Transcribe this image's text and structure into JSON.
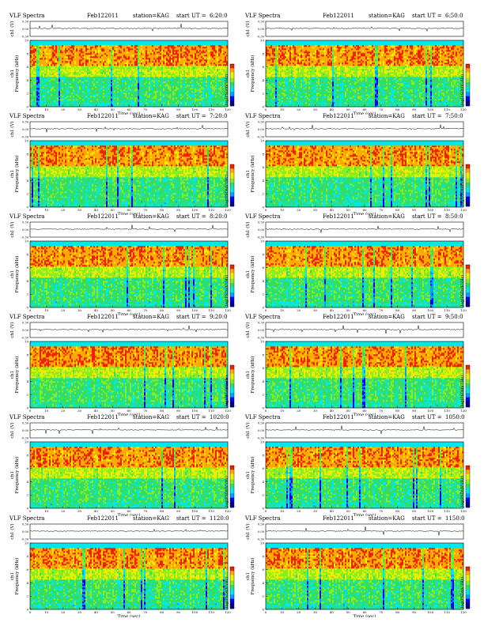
{
  "header": {
    "title_left": "VLF Spectra",
    "station": "station=KAG",
    "start_prefix": "start UT ="
  },
  "axis": {
    "waveform_label": "ch1 (V)",
    "waveform_ticks": [
      "0.30",
      "0.00",
      "-0.30"
    ],
    "freq_label": "Frequency (kHz)",
    "ch_label": "ch1",
    "freq_ticks": [
      "0",
      "2",
      "4",
      "6",
      "8",
      "10"
    ],
    "time_label": "Time (sec)",
    "time_ticks": [
      "0",
      "10",
      "20",
      "30",
      "40",
      "50",
      "60",
      "70",
      "80",
      "90",
      "100",
      "110",
      "120"
    ],
    "colorbar_label": "log(PSD)(V²/Hz)",
    "colorbar_ticks": [
      "-",
      "-"
    ]
  },
  "colors": {
    "spectrogram_scale": [
      "#00008b",
      "#0000ff",
      "#00a0ff",
      "#00e8e8",
      "#33dd66",
      "#88ee22",
      "#eeee00",
      "#ffaa00",
      "#ee2200"
    ]
  },
  "panels": [
    {
      "date": "Feb122011",
      "ut": "6:20:0"
    },
    {
      "date": "Feb122011",
      "ut": "6:50:0"
    },
    {
      "date": "Feb122011",
      "ut": "7:20:0"
    },
    {
      "date": "Feb122011",
      "ut": "7:50:0"
    },
    {
      "date": "Feb122011",
      "ut": "8:20:0"
    },
    {
      "date": "Feb122011",
      "ut": "8:50:0"
    },
    {
      "date": "Feb122011",
      "ut": "9:20:0"
    },
    {
      "date": "Feb122011",
      "ut": "9:50:0"
    },
    {
      "date": "Feb122011",
      "ut": "1020:0"
    },
    {
      "date": "Feb122011",
      "ut": "1050:0"
    },
    {
      "date": "Feb122011",
      "ut": "1120:0"
    },
    {
      "date": "Feb122011",
      "ut": "1150:0"
    }
  ],
  "chart_data": {
    "type": "heatmap",
    "x_label": "Time (sec)",
    "xlim": [
      0,
      120
    ],
    "y_label": "Frequency (kHz)",
    "ylim": [
      0,
      10
    ],
    "colorbar_label": "log(PSD)(V²/Hz)",
    "waveform": {
      "label": "ch1 (V)",
      "ylim": [
        -0.3,
        0.3
      ]
    },
    "bands": [
      {
        "freq_range_khz": [
          9.0,
          10.0
        ],
        "level": "low"
      },
      {
        "freq_range_khz": [
          6.0,
          9.0
        ],
        "level": "high"
      },
      {
        "freq_range_khz": [
          4.5,
          6.0
        ],
        "level": "medium"
      },
      {
        "freq_range_khz": [
          0.0,
          4.5
        ],
        "level": "low-medium"
      }
    ]
  }
}
